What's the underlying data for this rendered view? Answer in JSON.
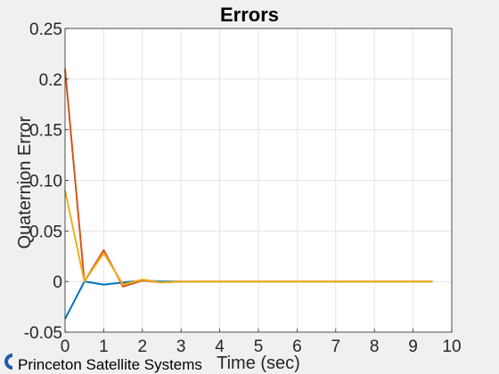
{
  "figure": {
    "background": "#f0f0f0",
    "plot_background": "#ffffff",
    "watermark": "Princeton Satellite Systems"
  },
  "chart_data": {
    "type": "line",
    "title": "Errors",
    "xlabel": "Time (sec)",
    "ylabel": "Quaternion Error",
    "xlim": [
      0,
      10
    ],
    "ylim": [
      -0.05,
      0.25
    ],
    "xticks": [
      0,
      1,
      2,
      3,
      4,
      5,
      6,
      7,
      8,
      9,
      10
    ],
    "yticks": [
      -0.05,
      0,
      0.05,
      0.1,
      0.15,
      0.2,
      0.25
    ],
    "ytick_labels": [
      "-0.05",
      "0",
      "0.05",
      "0.10",
      "0.15",
      "0.2",
      "0.25"
    ],
    "grid": true,
    "x": [
      0,
      0.5,
      1,
      1.5,
      2,
      2.5,
      3,
      3.5,
      4,
      4.5,
      5,
      5.5,
      6,
      6.5,
      7,
      7.5,
      8,
      8.5,
      9,
      9.5
    ],
    "series": [
      {
        "color": "#0072bd",
        "values": [
          -0.037,
          0.0,
          -0.003,
          -0.001,
          0.001,
          0.0,
          0.0,
          0.0,
          0.0,
          0.0,
          0.0,
          0.0,
          0.0,
          0.0,
          0.0,
          0.0,
          0.0,
          0.0,
          0.0,
          0.0
        ]
      },
      {
        "color": "#d95319",
        "values": [
          0.21,
          0.0,
          0.031,
          -0.005,
          0.001,
          -0.001,
          0.0,
          0.0,
          0.0,
          0.0,
          0.0,
          0.0,
          0.0,
          0.0,
          0.0,
          0.0,
          0.0,
          0.0,
          0.0,
          0.0
        ]
      },
      {
        "color": "#edb120",
        "values": [
          0.09,
          0.0,
          0.028,
          -0.003,
          0.002,
          -0.001,
          0.0,
          0.0,
          0.0,
          0.0,
          0.0,
          0.0,
          0.0,
          0.0,
          0.0,
          0.0,
          0.0,
          0.0,
          0.0,
          0.0
        ]
      }
    ]
  }
}
